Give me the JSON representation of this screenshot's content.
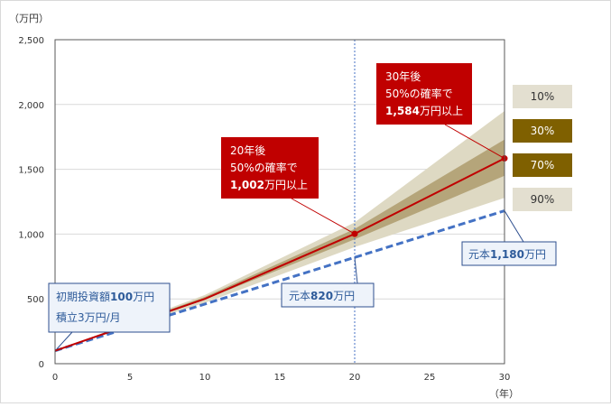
{
  "chart_data": {
    "type": "area",
    "y_unit_label": "（万円）",
    "x_unit_label": "（年）",
    "xlim": [
      0,
      30
    ],
    "ylim": [
      0,
      2500
    ],
    "x_ticks": [
      0,
      5,
      10,
      15,
      20,
      25,
      30
    ],
    "y_ticks": [
      0,
      500,
      1000,
      1500,
      2000,
      2500
    ],
    "y_tick_labels": [
      "0",
      "500",
      "1,000",
      "1,500",
      "2,000",
      "2,500"
    ],
    "x": [
      0,
      10,
      20,
      30
    ],
    "series": [
      {
        "name": "10%",
        "role": "band_upper_outer",
        "values": [
          100,
          530,
          1090,
          1950
        ]
      },
      {
        "name": "30%",
        "role": "band_upper_inner",
        "values": [
          100,
          515,
          1040,
          1730
        ]
      },
      {
        "name": "70%",
        "role": "band_lower_inner",
        "values": [
          100,
          495,
          960,
          1450
        ]
      },
      {
        "name": "90%",
        "role": "band_lower_outer",
        "values": [
          100,
          470,
          900,
          1280
        ]
      },
      {
        "role": "median",
        "values": [
          100,
          500,
          1002,
          1584
        ]
      },
      {
        "role": "principal",
        "values": [
          100,
          460,
          820,
          1180
        ]
      }
    ],
    "legend": [
      {
        "label": "10%",
        "color": "#e3dfd0",
        "text_color": "#333333"
      },
      {
        "label": "30%",
        "color": "#7f6000",
        "text_color": "#ffffff"
      },
      {
        "label": "70%",
        "color": "#7f6000",
        "text_color": "#ffffff"
      },
      {
        "label": "90%",
        "color": "#e3dfd0",
        "text_color": "#333333"
      }
    ],
    "legend_placement": "right",
    "grid": "horizontal",
    "marker_x": 20,
    "annotations": {
      "start": {
        "line1_text": "初期投資額",
        "line1_bold": "100",
        "line1_unit": "万円",
        "line2": "積立3万円/月"
      },
      "principal_20": {
        "text": "元本",
        "bold": "820",
        "unit": "万円"
      },
      "principal_30": {
        "text": "元本",
        "bold": "1,180",
        "unit": "万円"
      },
      "median_20": {
        "line1": "20年後",
        "line2": "50%の確率で",
        "line3_bold": "1,002",
        "line3_unit": "万円以上"
      },
      "median_30": {
        "line1": "30年後",
        "line2": "50%の確率で",
        "line3_bold": "1,584",
        "line3_unit": "万円以上"
      }
    },
    "colors": {
      "outer_band": "#ded9c3",
      "inner_band": "#b5a57a",
      "median_line": "#c00000",
      "principal_line": "#4472c4",
      "marker_line": "#4472c4",
      "callout_red": "#c00000",
      "callout_blue_bg": "#eef3fa",
      "callout_blue_border": "#2e4f8f",
      "callout_blue_text": "#2e5b9a",
      "grid": "#d9d9d9",
      "axis": "#595959"
    }
  }
}
